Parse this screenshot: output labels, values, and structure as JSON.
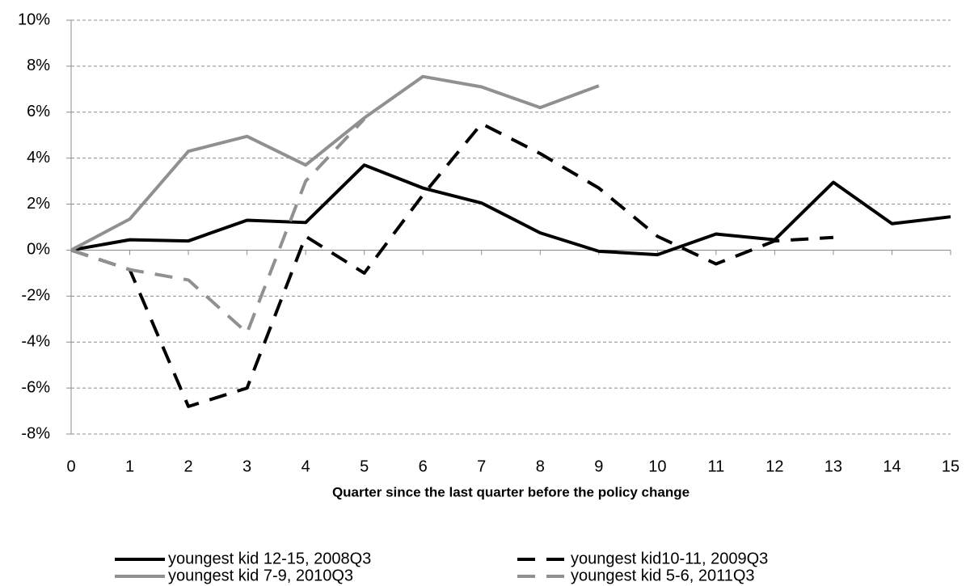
{
  "chart_data": {
    "type": "line",
    "x_label": "Quarter since the last quarter before the policy change",
    "x": [
      0,
      1,
      2,
      3,
      4,
      5,
      6,
      7,
      8,
      9,
      10,
      11,
      12,
      13,
      14,
      15
    ],
    "series": [
      {
        "name": "youngest kid 12-15, 2008Q3",
        "color": "#000000",
        "dashed": false,
        "values": [
          0,
          0.45,
          0.4,
          1.3,
          1.2,
          3.7,
          2.7,
          2.05,
          0.75,
          -0.05,
          -0.2,
          0.7,
          0.45,
          2.95,
          1.15,
          1.45
        ]
      },
      {
        "name": "youngest kid10-11, 2009Q3",
        "color": "#000000",
        "dashed": true,
        "values": [
          0,
          -0.85,
          -6.8,
          -6.0,
          0.6,
          -1.0,
          2.4,
          5.5,
          4.2,
          2.7,
          0.6,
          -0.6,
          0.4,
          0.55,
          null,
          null
        ]
      },
      {
        "name": "youngest kid 7-9, 2010Q3",
        "color": "#909090",
        "dashed": false,
        "values": [
          0,
          1.35,
          4.3,
          4.95,
          3.7,
          5.75,
          7.55,
          7.1,
          6.2,
          7.15,
          null,
          null,
          null,
          null,
          null,
          null
        ]
      },
      {
        "name": "youngest kid 5-6, 2011Q3",
        "color": "#909090",
        "dashed": true,
        "values": [
          0,
          -0.85,
          -1.3,
          -3.6,
          3.0,
          5.7,
          null,
          null,
          null,
          null,
          null,
          null,
          null,
          null,
          null,
          null
        ]
      }
    ],
    "xlim": [
      0,
      15
    ],
    "xticks": [
      0,
      1,
      2,
      3,
      4,
      5,
      6,
      7,
      8,
      9,
      10,
      11,
      12,
      13,
      14,
      15
    ],
    "ylim": [
      -8,
      10
    ],
    "yticks": [
      {
        "value": -8,
        "label": "-8%"
      },
      {
        "value": -6,
        "label": "-6%"
      },
      {
        "value": -4,
        "label": "-4%"
      },
      {
        "value": -2,
        "label": "-2%"
      },
      {
        "value": 0,
        "label": "0%"
      },
      {
        "value": 2,
        "label": "2%"
      },
      {
        "value": 4,
        "label": "4%"
      },
      {
        "value": 6,
        "label": "6%"
      },
      {
        "value": 8,
        "label": "8%"
      },
      {
        "value": 10,
        "label": "10%"
      }
    ],
    "grid": true,
    "legend": "bottom"
  }
}
